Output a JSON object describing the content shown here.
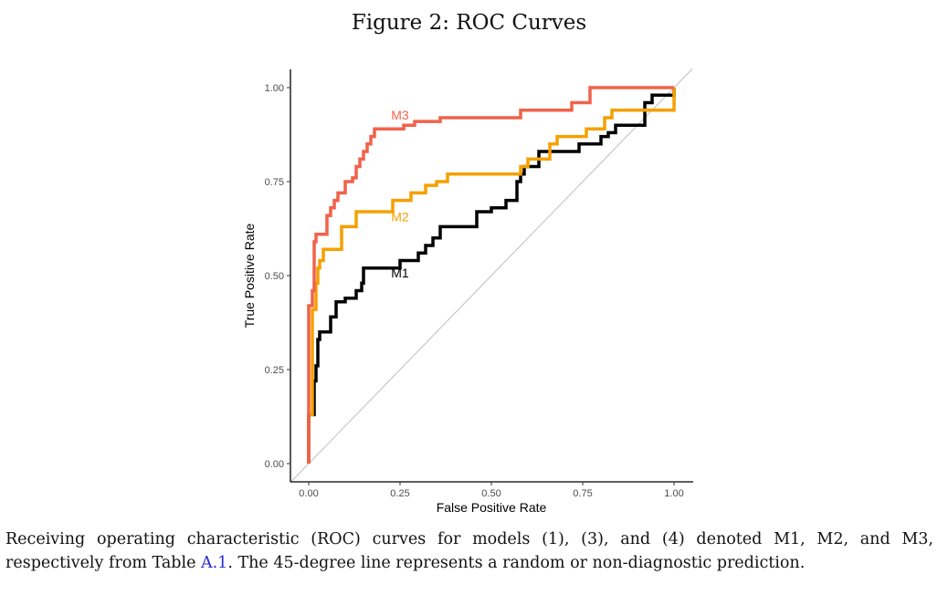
{
  "figure": {
    "title": "Figure 2: ROC Curves"
  },
  "caption": {
    "line1": "Receiving operating characteristic (ROC) curves for models (1), (3), and (4) denoted M1, M2, and M3,",
    "line2_before": "respectively from Table ",
    "line2_ref": "A.1",
    "line2_after": ". The 45-degree line represents a random or non-diagnostic prediction."
  },
  "chart_data": {
    "type": "line",
    "xlabel": "False Positive Rate",
    "ylabel": "True Positive Rate",
    "xlim": [
      0,
      1
    ],
    "ylim": [
      0,
      1
    ],
    "xticks": [
      "0.00",
      "0.25",
      "0.50",
      "0.75",
      "1.00"
    ],
    "yticks": [
      "0.00",
      "0.25",
      "0.50",
      "0.75",
      "1.00"
    ],
    "grid": false,
    "reference_line": {
      "from": [
        0,
        0
      ],
      "to": [
        1,
        1
      ],
      "color": "#c8c8c8"
    },
    "series": [
      {
        "name": "M1",
        "color": "#000000",
        "points": [
          [
            0,
            0
          ],
          [
            0,
            0.13
          ],
          [
            0.015,
            0.13
          ],
          [
            0.015,
            0.22
          ],
          [
            0.02,
            0.22
          ],
          [
            0.02,
            0.26
          ],
          [
            0.025,
            0.26
          ],
          [
            0.025,
            0.33
          ],
          [
            0.03,
            0.33
          ],
          [
            0.03,
            0.35
          ],
          [
            0.06,
            0.35
          ],
          [
            0.06,
            0.39
          ],
          [
            0.075,
            0.39
          ],
          [
            0.075,
            0.43
          ],
          [
            0.1,
            0.43
          ],
          [
            0.1,
            0.44
          ],
          [
            0.13,
            0.44
          ],
          [
            0.13,
            0.46
          ],
          [
            0.145,
            0.46
          ],
          [
            0.145,
            0.48
          ],
          [
            0.15,
            0.48
          ],
          [
            0.15,
            0.52
          ],
          [
            0.25,
            0.52
          ],
          [
            0.25,
            0.54
          ],
          [
            0.3,
            0.54
          ],
          [
            0.3,
            0.56
          ],
          [
            0.32,
            0.56
          ],
          [
            0.32,
            0.58
          ],
          [
            0.34,
            0.58
          ],
          [
            0.34,
            0.6
          ],
          [
            0.36,
            0.6
          ],
          [
            0.36,
            0.63
          ],
          [
            0.46,
            0.63
          ],
          [
            0.46,
            0.67
          ],
          [
            0.5,
            0.67
          ],
          [
            0.5,
            0.68
          ],
          [
            0.54,
            0.68
          ],
          [
            0.54,
            0.7
          ],
          [
            0.57,
            0.7
          ],
          [
            0.57,
            0.75
          ],
          [
            0.58,
            0.75
          ],
          [
            0.58,
            0.77
          ],
          [
            0.59,
            0.77
          ],
          [
            0.59,
            0.79
          ],
          [
            0.63,
            0.79
          ],
          [
            0.63,
            0.83
          ],
          [
            0.74,
            0.83
          ],
          [
            0.74,
            0.85
          ],
          [
            0.8,
            0.85
          ],
          [
            0.8,
            0.87
          ],
          [
            0.82,
            0.87
          ],
          [
            0.82,
            0.88
          ],
          [
            0.84,
            0.88
          ],
          [
            0.84,
            0.9
          ],
          [
            0.92,
            0.9
          ],
          [
            0.92,
            0.96
          ],
          [
            0.94,
            0.96
          ],
          [
            0.94,
            0.98
          ],
          [
            1,
            0.98
          ],
          [
            1,
            1
          ]
        ]
      },
      {
        "name": "M2",
        "color": "#f5a000",
        "points": [
          [
            0,
            0
          ],
          [
            0,
            0.13
          ],
          [
            0.01,
            0.13
          ],
          [
            0.01,
            0.41
          ],
          [
            0.02,
            0.41
          ],
          [
            0.02,
            0.48
          ],
          [
            0.025,
            0.48
          ],
          [
            0.025,
            0.52
          ],
          [
            0.03,
            0.52
          ],
          [
            0.03,
            0.54
          ],
          [
            0.04,
            0.54
          ],
          [
            0.04,
            0.57
          ],
          [
            0.09,
            0.57
          ],
          [
            0.09,
            0.63
          ],
          [
            0.13,
            0.63
          ],
          [
            0.13,
            0.67
          ],
          [
            0.23,
            0.67
          ],
          [
            0.23,
            0.7
          ],
          [
            0.28,
            0.7
          ],
          [
            0.28,
            0.72
          ],
          [
            0.32,
            0.72
          ],
          [
            0.32,
            0.74
          ],
          [
            0.35,
            0.74
          ],
          [
            0.35,
            0.75
          ],
          [
            0.38,
            0.75
          ],
          [
            0.38,
            0.77
          ],
          [
            0.58,
            0.77
          ],
          [
            0.58,
            0.79
          ],
          [
            0.6,
            0.79
          ],
          [
            0.6,
            0.81
          ],
          [
            0.66,
            0.81
          ],
          [
            0.66,
            0.85
          ],
          [
            0.68,
            0.85
          ],
          [
            0.68,
            0.87
          ],
          [
            0.76,
            0.87
          ],
          [
            0.76,
            0.89
          ],
          [
            0.81,
            0.89
          ],
          [
            0.81,
            0.92
          ],
          [
            0.83,
            0.92
          ],
          [
            0.83,
            0.94
          ],
          [
            1,
            0.94
          ],
          [
            1,
            1
          ]
        ]
      },
      {
        "name": "M3",
        "color": "#f0624a",
        "points": [
          [
            0,
            0
          ],
          [
            0,
            0.42
          ],
          [
            0.01,
            0.42
          ],
          [
            0.01,
            0.46
          ],
          [
            0.015,
            0.46
          ],
          [
            0.015,
            0.59
          ],
          [
            0.02,
            0.59
          ],
          [
            0.02,
            0.61
          ],
          [
            0.05,
            0.61
          ],
          [
            0.05,
            0.66
          ],
          [
            0.06,
            0.66
          ],
          [
            0.06,
            0.68
          ],
          [
            0.07,
            0.68
          ],
          [
            0.07,
            0.7
          ],
          [
            0.08,
            0.7
          ],
          [
            0.08,
            0.72
          ],
          [
            0.1,
            0.72
          ],
          [
            0.1,
            0.75
          ],
          [
            0.12,
            0.75
          ],
          [
            0.12,
            0.76
          ],
          [
            0.13,
            0.76
          ],
          [
            0.13,
            0.79
          ],
          [
            0.14,
            0.79
          ],
          [
            0.14,
            0.81
          ],
          [
            0.15,
            0.81
          ],
          [
            0.15,
            0.83
          ],
          [
            0.16,
            0.83
          ],
          [
            0.16,
            0.85
          ],
          [
            0.17,
            0.85
          ],
          [
            0.17,
            0.87
          ],
          [
            0.18,
            0.87
          ],
          [
            0.18,
            0.89
          ],
          [
            0.26,
            0.89
          ],
          [
            0.26,
            0.9
          ],
          [
            0.29,
            0.9
          ],
          [
            0.29,
            0.91
          ],
          [
            0.36,
            0.91
          ],
          [
            0.36,
            0.92
          ],
          [
            0.58,
            0.92
          ],
          [
            0.58,
            0.94
          ],
          [
            0.72,
            0.94
          ],
          [
            0.72,
            0.96
          ],
          [
            0.77,
            0.96
          ],
          [
            0.77,
            1
          ],
          [
            1,
            1
          ]
        ]
      }
    ]
  }
}
